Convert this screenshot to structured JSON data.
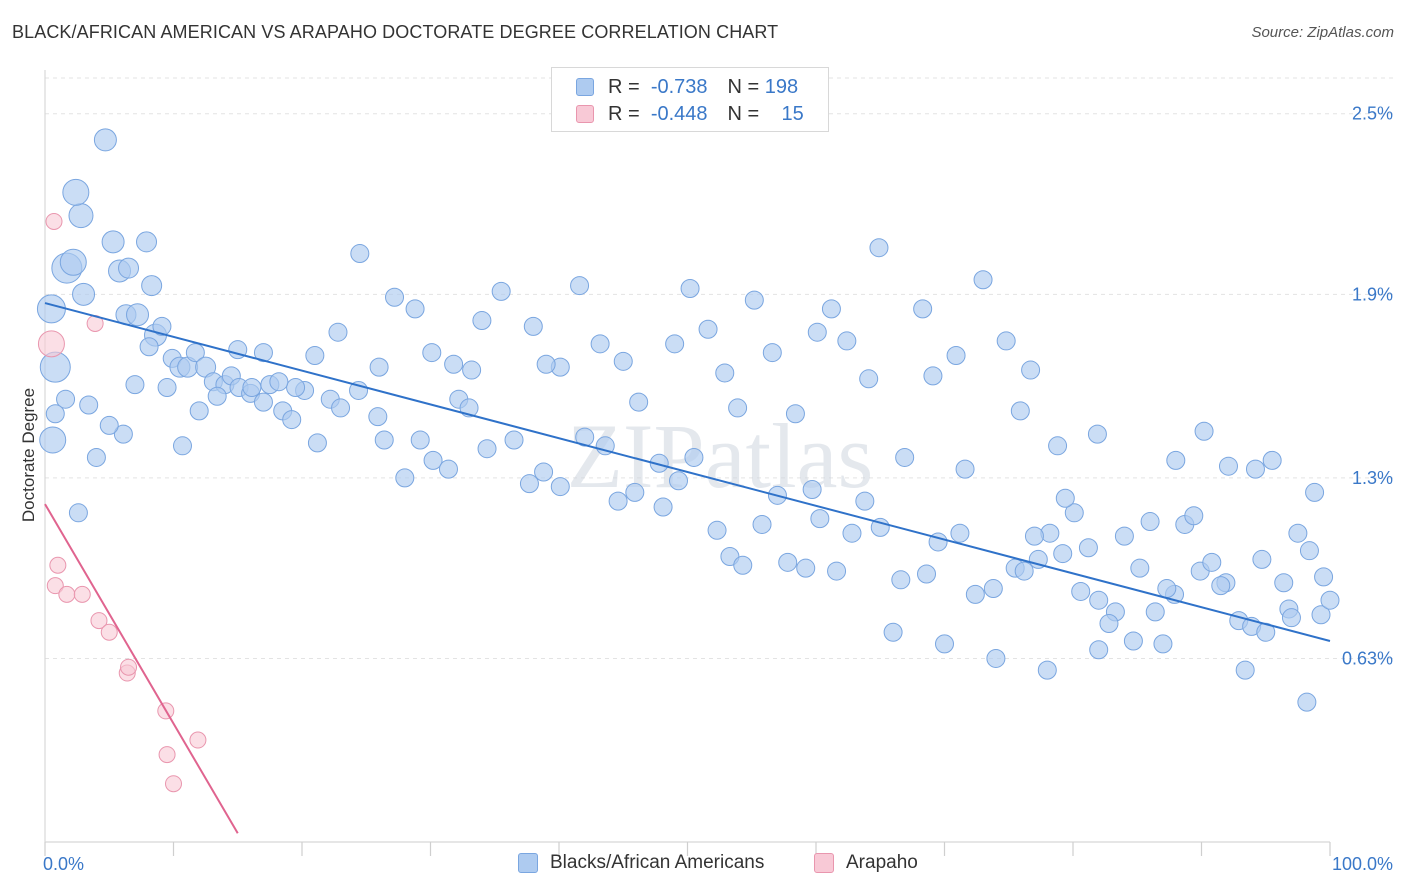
{
  "chart_data": {
    "type": "scatter",
    "title": "BLACK/AFRICAN AMERICAN VS ARAPAHO DOCTORATE DEGREE CORRELATION CHART",
    "source": "Source: ZipAtlas.com",
    "ylabel": "Doctorate Degree",
    "xlim": [
      0,
      100
    ],
    "ylim": [
      0,
      2.65
    ],
    "x_tick_labels": [
      "0.0%",
      "100.0%"
    ],
    "y_ticks": [
      {
        "value": 0.63,
        "label": "0.63%"
      },
      {
        "value": 1.25,
        "label": "1.3%"
      },
      {
        "value": 1.88,
        "label": "1.9%"
      },
      {
        "value": 2.5,
        "label": "2.5%"
      }
    ],
    "watermark": "ZIPatlas",
    "colors": {
      "blue_fill": "#aecbf0",
      "blue_stroke": "#7aa6e0",
      "blue_line": "#2f72c9",
      "pink_fill": "#f8c9d6",
      "pink_stroke": "#e996ae",
      "pink_line": "#e0648f",
      "value_text": "#3a78c8"
    },
    "legend": [
      {
        "r_label": "R =",
        "r_value": "-0.738",
        "n_label": "N =",
        "n_value": "198"
      },
      {
        "r_label": "R =",
        "r_value": "-0.448",
        "n_label": "N =",
        "n_value": "15"
      }
    ],
    "series": [
      {
        "name": "Blacks/African Americans",
        "trend": {
          "x": [
            0,
            100
          ],
          "y": [
            1.85,
            0.69
          ]
        },
        "points": [
          [
            0.5,
            1.83,
            14
          ],
          [
            0.8,
            1.63,
            15
          ],
          [
            0.6,
            1.38,
            13
          ],
          [
            1.7,
            1.97,
            15
          ],
          [
            3,
            1.88,
            11
          ],
          [
            2.2,
            1.99,
            13
          ],
          [
            2.8,
            2.15,
            12
          ],
          [
            2.4,
            2.23,
            13
          ],
          [
            4.7,
            2.41,
            11
          ],
          [
            5.3,
            2.06,
            11
          ],
          [
            5.8,
            1.96,
            11
          ],
          [
            6.5,
            1.97,
            10
          ],
          [
            7.9,
            2.06,
            10
          ],
          [
            8.3,
            1.91,
            10
          ],
          [
            6.3,
            1.81,
            10
          ],
          [
            7.2,
            1.81,
            11
          ],
          [
            8.6,
            1.74,
            11
          ],
          [
            9.1,
            1.77,
            9
          ],
          [
            9.9,
            1.66,
            9
          ],
          [
            10.5,
            1.63,
            10
          ],
          [
            11.1,
            1.63,
            10
          ],
          [
            11.7,
            1.68,
            9
          ],
          [
            12.5,
            1.63,
            10
          ],
          [
            13.1,
            1.58,
            9
          ],
          [
            14,
            1.57,
            9
          ],
          [
            14.5,
            1.6,
            9
          ],
          [
            15.1,
            1.56,
            9
          ],
          [
            16,
            1.54,
            9
          ],
          [
            17,
            1.51,
            9
          ],
          [
            17.5,
            1.57,
            9
          ],
          [
            18.5,
            1.48,
            9
          ],
          [
            19.2,
            1.45,
            9
          ],
          [
            20.2,
            1.55,
            9
          ],
          [
            21.2,
            1.37,
            9
          ],
          [
            22.2,
            1.52,
            9
          ],
          [
            23.0,
            1.49,
            9
          ],
          [
            24.4,
            1.55,
            9
          ],
          [
            25.9,
            1.46,
            9
          ],
          [
            26.4,
            1.38,
            9
          ],
          [
            28.0,
            1.25,
            9
          ],
          [
            29.2,
            1.38,
            9
          ],
          [
            30.2,
            1.31,
            9
          ],
          [
            31.4,
            1.28,
            9
          ],
          [
            32.2,
            1.52,
            9
          ],
          [
            33.0,
            1.49,
            9
          ],
          [
            34.4,
            1.35,
            9
          ],
          [
            36.5,
            1.38,
            9
          ],
          [
            37.7,
            1.23,
            9
          ],
          [
            38.8,
            1.27,
            9
          ],
          [
            40.1,
            1.22,
            9
          ],
          [
            42.0,
            1.39,
            9
          ],
          [
            43.6,
            1.36,
            9
          ],
          [
            44.6,
            1.17,
            9
          ],
          [
            45.9,
            1.2,
            9
          ],
          [
            48.1,
            1.15,
            9
          ],
          [
            49.3,
            1.24,
            9
          ],
          [
            50.5,
            1.32,
            9
          ],
          [
            52.3,
            1.07,
            9
          ],
          [
            53.3,
            0.98,
            9
          ],
          [
            54.3,
            0.95,
            9
          ],
          [
            55.8,
            1.09,
            9
          ],
          [
            57.0,
            1.19,
            9
          ],
          [
            57.8,
            0.96,
            9
          ],
          [
            59.2,
            0.94,
            9
          ],
          [
            60.3,
            1.11,
            9
          ],
          [
            61.6,
            0.93,
            9
          ],
          [
            62.8,
            1.06,
            9
          ],
          [
            63.8,
            1.17,
            9
          ],
          [
            65.0,
            1.08,
            9
          ],
          [
            66.6,
            0.9,
            9
          ],
          [
            68.6,
            0.92,
            9
          ],
          [
            69.5,
            1.03,
            9
          ],
          [
            71.2,
            1.06,
            9
          ],
          [
            72.4,
            0.85,
            9
          ],
          [
            73.8,
            0.87,
            9
          ],
          [
            75.5,
            0.94,
            9
          ],
          [
            76.2,
            0.93,
            9
          ],
          [
            77.3,
            0.97,
            9
          ],
          [
            78.2,
            1.06,
            9
          ],
          [
            79.2,
            0.99,
            9
          ],
          [
            80.1,
            1.13,
            9
          ],
          [
            81.2,
            1.01,
            9
          ],
          [
            82.0,
            0.83,
            9
          ],
          [
            83.3,
            0.79,
            9
          ],
          [
            84.7,
            0.69,
            9
          ],
          [
            86.4,
            0.79,
            9
          ],
          [
            87.9,
            0.85,
            9
          ],
          [
            88.7,
            1.09,
            9
          ],
          [
            89.9,
            0.93,
            9
          ],
          [
            90.8,
            0.96,
            9
          ],
          [
            91.9,
            0.89,
            9
          ],
          [
            92.9,
            0.76,
            9
          ],
          [
            93.9,
            0.74,
            9
          ],
          [
            94.7,
            0.97,
            9
          ],
          [
            96.4,
            0.89,
            9
          ],
          [
            97.5,
            1.06,
            9
          ],
          [
            98.4,
            1.0,
            9
          ],
          [
            98.8,
            1.2,
            9
          ],
          [
            99.3,
            0.78,
            9
          ],
          [
            94.2,
            1.28,
            9
          ],
          [
            95.5,
            1.31,
            9
          ],
          [
            96.8,
            0.8,
            9
          ],
          [
            86.0,
            1.1,
            9
          ],
          [
            87.3,
            0.87,
            9
          ],
          [
            88.0,
            1.31,
            9
          ],
          [
            90.2,
            1.41,
            9
          ],
          [
            92.1,
            1.29,
            9
          ],
          [
            84.0,
            1.05,
            9
          ],
          [
            85.2,
            0.94,
            9
          ],
          [
            82.8,
            0.75,
            9
          ],
          [
            80.6,
            0.86,
            9
          ],
          [
            79.4,
            1.18,
            9
          ],
          [
            78.8,
            1.36,
            9
          ],
          [
            77.0,
            1.05,
            9
          ],
          [
            75.9,
            1.48,
            9
          ],
          [
            74.8,
            1.72,
            9
          ],
          [
            73.0,
            1.93,
            9
          ],
          [
            71.6,
            1.28,
            9
          ],
          [
            69.1,
            1.6,
            9
          ],
          [
            68.3,
            1.83,
            9
          ],
          [
            66.9,
            1.32,
            9
          ],
          [
            64.9,
            2.04,
            9
          ],
          [
            62.4,
            1.72,
            9
          ],
          [
            61.2,
            1.83,
            9
          ],
          [
            59.7,
            1.21,
            9
          ],
          [
            58.4,
            1.47,
            9
          ],
          [
            56.6,
            1.68,
            9
          ],
          [
            55.2,
            1.86,
            9
          ],
          [
            53.9,
            1.49,
            9
          ],
          [
            52.9,
            1.61,
            9
          ],
          [
            51.6,
            1.76,
            9
          ],
          [
            50.2,
            1.9,
            9
          ],
          [
            49.0,
            1.71,
            9
          ],
          [
            47.8,
            1.3,
            9
          ],
          [
            46.2,
            1.51,
            9
          ],
          [
            45.0,
            1.65,
            9
          ],
          [
            43.2,
            1.71,
            9
          ],
          [
            41.6,
            1.91,
            9
          ],
          [
            40.1,
            1.63,
            9
          ],
          [
            39.0,
            1.64,
            9
          ],
          [
            38.0,
            1.77,
            9
          ],
          [
            35.5,
            1.89,
            9
          ],
          [
            34.0,
            1.79,
            9
          ],
          [
            33.2,
            1.62,
            9
          ],
          [
            31.8,
            1.64,
            9
          ],
          [
            30.1,
            1.68,
            9
          ],
          [
            28.8,
            1.83,
            9
          ],
          [
            27.2,
            1.87,
            9
          ],
          [
            26.0,
            1.63,
            9
          ],
          [
            24.5,
            2.02,
            9
          ],
          [
            22.8,
            1.75,
            9
          ],
          [
            21.0,
            1.67,
            9
          ],
          [
            19.5,
            1.56,
            9
          ],
          [
            18.2,
            1.58,
            9
          ],
          [
            17.0,
            1.68,
            9
          ],
          [
            16.1,
            1.56,
            9
          ],
          [
            15.0,
            1.69,
            9
          ],
          [
            13.4,
            1.53,
            9
          ],
          [
            12.0,
            1.48,
            9
          ],
          [
            10.7,
            1.36,
            9
          ],
          [
            9.5,
            1.56,
            9
          ],
          [
            8.1,
            1.7,
            9
          ],
          [
            7.0,
            1.57,
            9
          ],
          [
            6.1,
            1.4,
            9
          ],
          [
            5.0,
            1.43,
            9
          ],
          [
            4.0,
            1.32,
            9
          ],
          [
            3.4,
            1.5,
            9
          ],
          [
            2.6,
            1.13,
            9
          ],
          [
            1.6,
            1.52,
            9
          ],
          [
            0.8,
            1.47,
            9
          ],
          [
            60.1,
            1.75,
            9
          ],
          [
            64.1,
            1.59,
            9
          ],
          [
            70.9,
            1.67,
            9
          ],
          [
            76.7,
            1.62,
            9
          ],
          [
            81.9,
            1.4,
            9
          ],
          [
            89.4,
            1.12,
            9
          ],
          [
            91.5,
            0.88,
            9
          ],
          [
            93.4,
            0.59,
            9
          ],
          [
            97.0,
            0.77,
            9
          ],
          [
            98.2,
            0.48,
            9
          ],
          [
            99.5,
            0.91,
            9
          ],
          [
            95.0,
            0.72,
            9
          ],
          [
            87.0,
            0.68,
            9
          ],
          [
            82.0,
            0.66,
            9
          ],
          [
            78.0,
            0.59,
            9
          ],
          [
            74.0,
            0.63,
            9
          ],
          [
            70.0,
            0.68,
            9
          ],
          [
            66.0,
            0.72,
            9
          ],
          [
            100.0,
            0.83,
            9
          ]
        ]
      },
      {
        "name": "Arapaho",
        "trend": {
          "x": [
            0,
            15
          ],
          "y": [
            1.16,
            0.03
          ]
        },
        "points": [
          [
            0.5,
            1.71,
            13
          ],
          [
            0.7,
            2.13,
            8
          ],
          [
            3.9,
            1.78,
            8
          ],
          [
            1.0,
            0.95,
            8
          ],
          [
            0.8,
            0.88,
            8
          ],
          [
            1.7,
            0.85,
            8
          ],
          [
            2.9,
            0.85,
            8
          ],
          [
            4.2,
            0.76,
            8
          ],
          [
            5.0,
            0.72,
            8
          ],
          [
            6.4,
            0.58,
            8
          ],
          [
            6.5,
            0.6,
            8
          ],
          [
            9.4,
            0.45,
            8
          ],
          [
            11.9,
            0.35,
            8
          ],
          [
            9.5,
            0.3,
            8
          ],
          [
            10.0,
            0.2,
            8
          ]
        ]
      }
    ]
  }
}
